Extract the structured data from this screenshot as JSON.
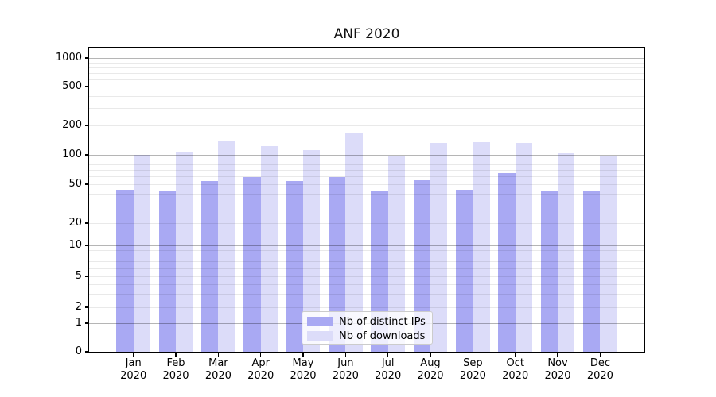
{
  "chart_data": {
    "type": "bar",
    "title": "ANF 2020",
    "categories": [
      "Jan 2020",
      "Feb 2020",
      "Mar 2020",
      "Apr 2020",
      "May 2020",
      "Jun 2020",
      "Jul 2020",
      "Aug 2020",
      "Sep 2020",
      "Oct 2020",
      "Nov 2020",
      "Dec 2020"
    ],
    "series": [
      {
        "name": "Nb of distinct IPs",
        "color": "#a9a9f3",
        "values": [
          44,
          42,
          54,
          59,
          54,
          59,
          43,
          55,
          44,
          65,
          42,
          42
        ]
      },
      {
        "name": "Nb of downloads",
        "color": "#dcdcf9",
        "values": [
          101,
          106,
          138,
          123,
          113,
          165,
          99,
          132,
          136,
          132,
          103,
          97
        ]
      }
    ],
    "yscale": "log-like",
    "yticks": [
      0,
      1,
      2,
      5,
      10,
      20,
      50,
      100,
      200,
      500,
      1000
    ],
    "ylim": [
      0,
      1280
    ],
    "xlabel": "",
    "ylabel": "",
    "grid": true,
    "legend_position": "lower center"
  }
}
